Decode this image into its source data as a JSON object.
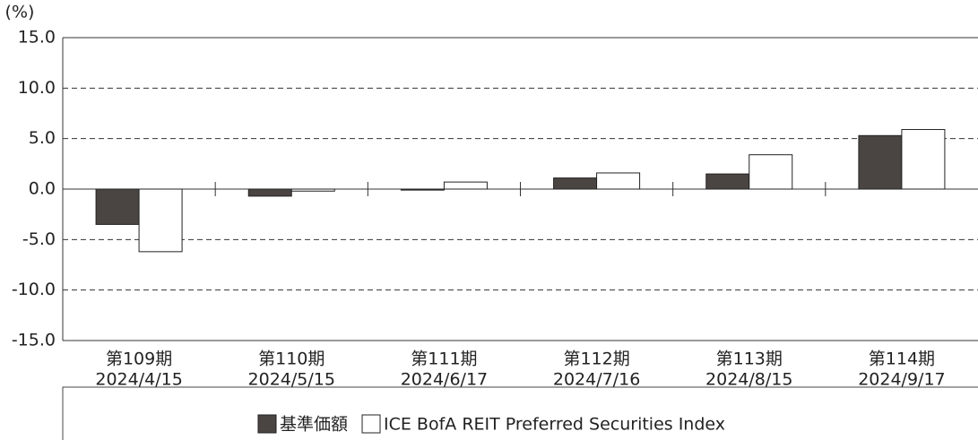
{
  "chart_data": {
    "type": "bar",
    "y_label": "(%)",
    "categories": [
      [
        "第109期",
        "2024/4/15"
      ],
      [
        "第110期",
        "2024/5/15"
      ],
      [
        "第111期",
        "2024/6/17"
      ],
      [
        "第112期",
        "2024/7/16"
      ],
      [
        "第113期",
        "2024/8/15"
      ],
      [
        "第114期",
        "2024/9/17"
      ]
    ],
    "series": [
      {
        "name": "基準価額",
        "color": "#4a4542",
        "values": [
          -3.5,
          -0.7,
          -0.1,
          1.1,
          1.5,
          5.3
        ]
      },
      {
        "name": "ICE BofA REIT Preferred Securities Index",
        "color": "#ffffff",
        "values": [
          -6.2,
          -0.2,
          0.7,
          1.6,
          3.4,
          5.9
        ]
      }
    ],
    "ylim": [
      -15,
      15
    ],
    "yticks": [
      {
        "value": 15,
        "label": "15.0"
      },
      {
        "value": 10,
        "label": "10.0"
      },
      {
        "value": 5,
        "label": "5.0"
      },
      {
        "value": 0,
        "label": "0.0"
      },
      {
        "value": -5,
        "label": "-5.0"
      },
      {
        "value": -10,
        "label": "-10.0"
      },
      {
        "value": -15,
        "label": "-15.0"
      }
    ],
    "grid": true,
    "legend": "bottom"
  }
}
